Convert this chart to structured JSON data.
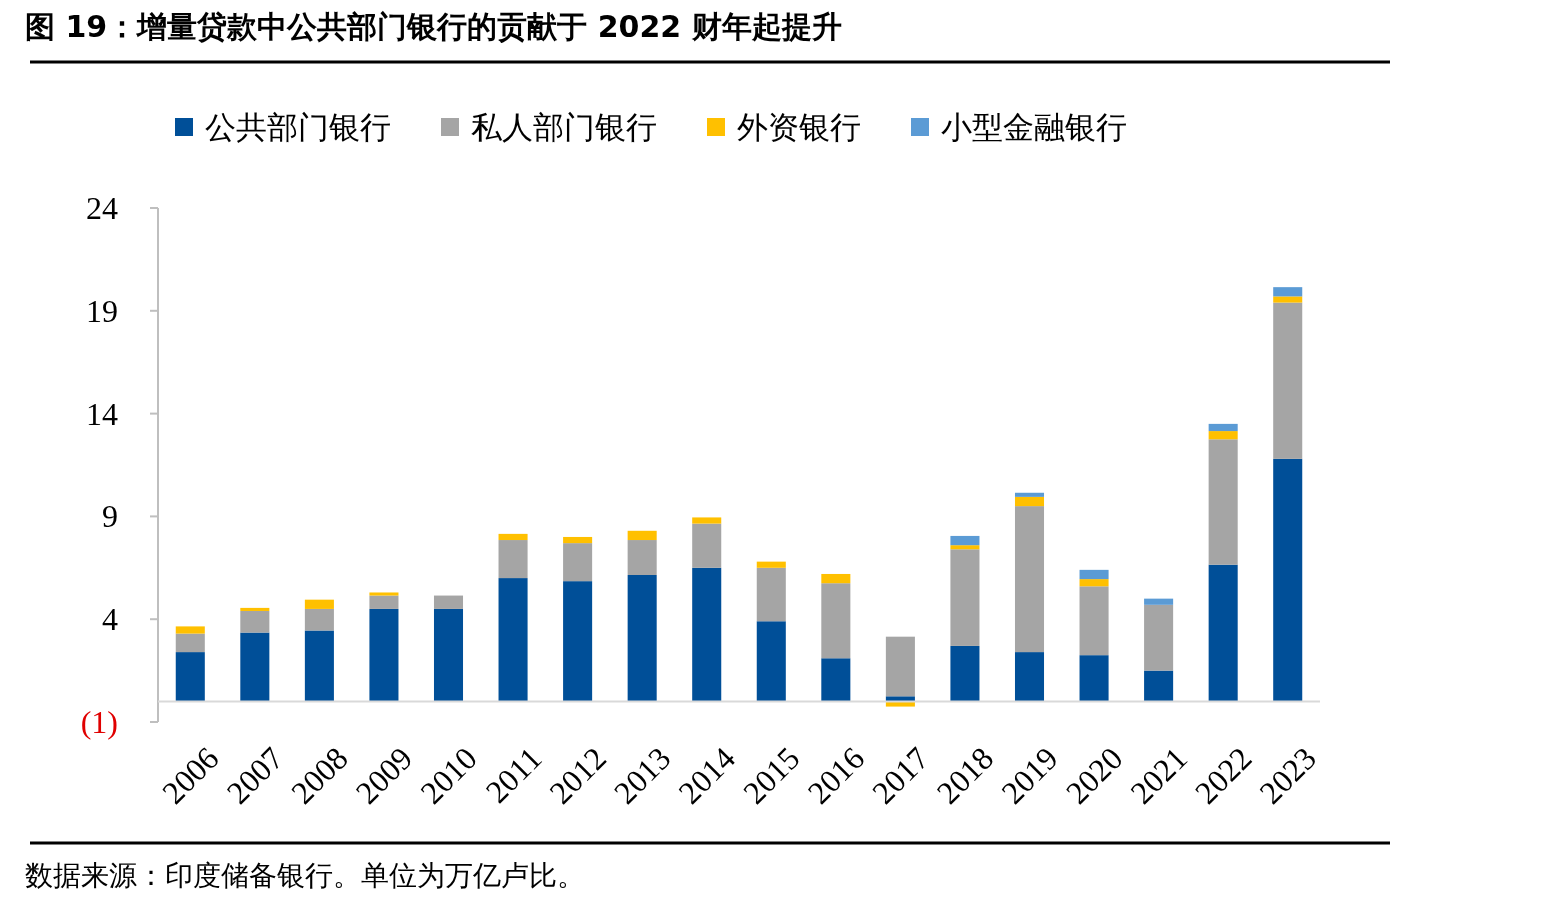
{
  "chart_data": {
    "type": "bar",
    "stacked": true,
    "title": "图 19：增量贷款中公共部门银行的贡献于 2022 财年起提升",
    "annotations": [
      "数据来源：印度储备银行。单位为万亿卢比。"
    ],
    "categories": [
      "2006",
      "2007",
      "2008",
      "2009",
      "2010",
      "2011",
      "2012",
      "2013",
      "2014",
      "2015",
      "2016",
      "2017",
      "2018",
      "2019",
      "2020",
      "2021",
      "2022",
      "2023"
    ],
    "series": [
      {
        "name": "公共部门银行",
        "color": "#004f98",
        "values": [
          2.4,
          3.35,
          3.45,
          4.5,
          4.5,
          6.0,
          5.85,
          6.15,
          6.5,
          3.9,
          2.1,
          0.25,
          2.7,
          2.4,
          2.25,
          1.5,
          6.65,
          11.8
        ]
      },
      {
        "name": "私人部门银行",
        "color": "#a5a5a5",
        "values": [
          0.9,
          1.05,
          1.05,
          0.65,
          0.65,
          1.85,
          1.85,
          1.7,
          2.15,
          2.6,
          3.65,
          2.9,
          4.7,
          7.1,
          3.35,
          3.2,
          6.1,
          7.6
        ]
      },
      {
        "name": "外资银行",
        "color": "#ffc000",
        "values": [
          0.35,
          0.15,
          0.45,
          0.15,
          null,
          0.3,
          0.3,
          0.45,
          0.3,
          0.3,
          0.45,
          -0.25,
          0.2,
          0.45,
          0.35,
          null,
          0.4,
          0.3
        ]
      },
      {
        "name": "小型金融银行",
        "color": "#5b9bd5",
        "values": [
          null,
          null,
          null,
          null,
          null,
          null,
          null,
          null,
          null,
          null,
          null,
          null,
          0.45,
          0.2,
          0.45,
          0.3,
          0.35,
          0.45
        ]
      }
    ],
    "ylim": [
      -1,
      24
    ],
    "yticks": [
      {
        "value": -1,
        "label": "(1)"
      },
      4,
      9,
      14,
      19,
      24
    ],
    "grid": false,
    "legend": "top"
  }
}
